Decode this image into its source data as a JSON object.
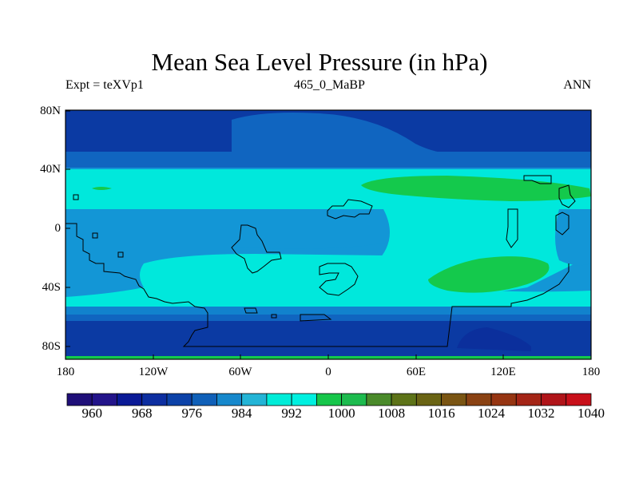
{
  "title": "Mean Sea Level Pressure (in hPa)",
  "subtitle_left": "Expt = teXVp1",
  "subtitle_center": "465_0_MaBP",
  "subtitle_right": "ANN",
  "map": {
    "projection": "cylindrical-equidistant",
    "lon_ticks": [
      "180",
      "120W",
      "60W",
      "0",
      "60E",
      "120E",
      "180"
    ],
    "lat_ticks": [
      "80N",
      "40N",
      "0",
      "40S",
      "80S"
    ]
  },
  "colorbar": {
    "labels": [
      "960",
      "968",
      "976",
      "984",
      "992",
      "1000",
      "1008",
      "1016",
      "1024",
      "1032",
      "1040"
    ],
    "colors": [
      "#1f0f78",
      "#23148a",
      "#0a1a96",
      "#0d2ea0",
      "#0c42a8",
      "#1060b8",
      "#1688cc",
      "#23b4d6",
      "#00ecd8",
      "#00f0e0",
      "#16c64a",
      "#1dbb4e",
      "#4a8a2a",
      "#5d7318",
      "#6a6414",
      "#7a5513",
      "#8a4213",
      "#963512",
      "#a42516",
      "#b01419",
      "#c8101a"
    ]
  },
  "colors": {
    "band_deep": "#0b3aa3",
    "band_mid": "#1065c0",
    "band_light": "#1396d6",
    "band_cyan": "#00e8dc",
    "band_green": "#14c94c",
    "band_darkblue": "#0b2f9c",
    "coast": "#000000"
  }
}
